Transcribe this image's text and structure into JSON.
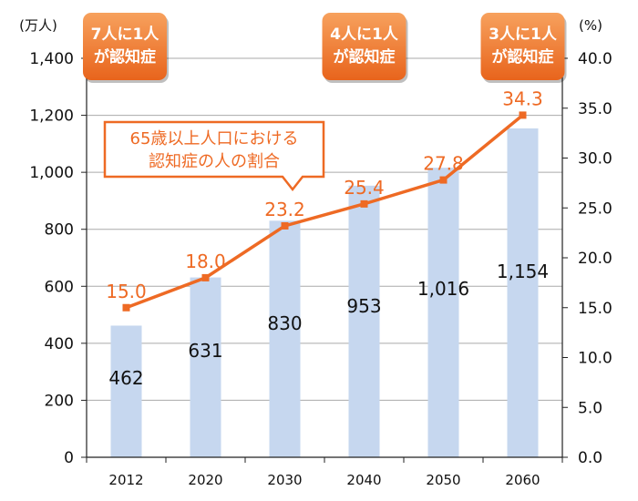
{
  "chart_data": {
    "type": "bar+line",
    "categories": [
      "2012",
      "2020",
      "2030",
      "2040",
      "2050",
      "2060"
    ],
    "series": [
      {
        "axis": "left",
        "type": "bar",
        "values": [
          462,
          631,
          830,
          953,
          1016,
          1154
        ],
        "labels": [
          "462",
          "631",
          "830",
          "953",
          "1,016",
          "1,154"
        ]
      },
      {
        "name": "65歳以上人口における認知症の人の割合",
        "axis": "right",
        "type": "line",
        "values": [
          15.0,
          18.0,
          23.2,
          25.4,
          27.8,
          34.3
        ],
        "labels": [
          "15.0",
          "18.0",
          "23.2",
          "25.4",
          "27.8",
          "34.3"
        ]
      }
    ],
    "left_axis": {
      "unit": "(万人)",
      "ylim": [
        0,
        1400
      ],
      "ticks": [
        "0",
        "200",
        "400",
        "600",
        "800",
        "1,000",
        "1,200",
        "1,400"
      ]
    },
    "right_axis": {
      "unit": "(%)",
      "ylim": [
        0,
        40
      ],
      "ticks": [
        "0.0",
        "5.0",
        "10.0",
        "15.0",
        "20.0",
        "25.0",
        "30.0",
        "35.0",
        "40.0"
      ]
    },
    "grid": true,
    "annotations": [
      {
        "category": "2012",
        "lines": [
          "7人に1人",
          "が認知症"
        ]
      },
      {
        "category": "2040",
        "lines": [
          "4人に1人",
          "が認知症"
        ]
      },
      {
        "category": "2060",
        "lines": [
          "3人に1人",
          "が認知症"
        ]
      }
    ],
    "callout": {
      "lines": [
        "65歳以上人口における",
        "認知症の人の割合"
      ]
    },
    "colors": {
      "bar": "#c6d7ef",
      "line": "#ee6a24",
      "badge": "#f07a2e",
      "grid": "#aaaaaa"
    }
  }
}
